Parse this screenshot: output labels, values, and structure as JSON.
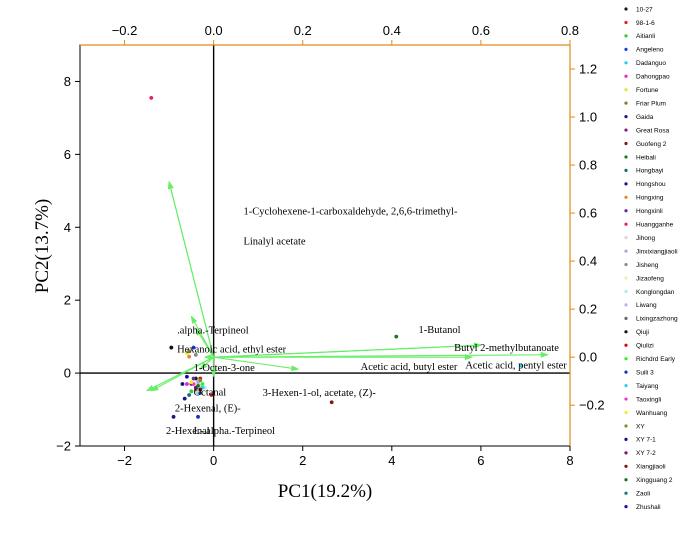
{
  "chart_data": {
    "type": "scatter",
    "xlabel": "PC1(19.2%)",
    "ylabel": "PC2(13.7%)",
    "xlim": [
      -3,
      8
    ],
    "ylim": [
      -2,
      9
    ],
    "xticks": [
      -2,
      0,
      2,
      4,
      6,
      8
    ],
    "yticks": [
      -2,
      0,
      2,
      4,
      6,
      8
    ],
    "loading_xlim": [
      -0.3,
      0.8
    ],
    "loading_ylim": [
      -0.37,
      1.3
    ],
    "top_ticks": [
      -0.2,
      0.0,
      0.2,
      0.4,
      0.6,
      0.8
    ],
    "right_ticks": [
      -0.2,
      0.0,
      0.2,
      0.4,
      0.6,
      0.8,
      1.0,
      1.2
    ],
    "top_tick_labels": [
      "−0.2",
      "0.0",
      "0.2",
      "0.4",
      "0.6",
      "0.8"
    ],
    "right_tick_labels": [
      "−0.2",
      "0.0",
      "0.2",
      "0.4",
      "0.6",
      "0.8",
      "1.0",
      "1.2"
    ],
    "xtick_labels": [
      "−2",
      "0",
      "2",
      "4",
      "6",
      "8"
    ],
    "ytick_labels": [
      "−2",
      "0",
      "2",
      "4",
      "6",
      "8"
    ],
    "colors": {
      "secondary_axes": "#e08a1e",
      "vectors": "#66ee66",
      "main_axes": "#000000"
    },
    "series": [
      {
        "name": "10-27",
        "color": "#1a1a1a",
        "x": -0.4,
        "y": -0.15
      },
      {
        "name": "98-1-6",
        "color": "#e02020",
        "x": -0.05,
        "y": -0.6
      },
      {
        "name": "Aitianli",
        "color": "#33cc33",
        "x": -0.5,
        "y": -0.5
      },
      {
        "name": "Angeleno",
        "color": "#1f3fd6",
        "x": -0.45,
        "y": 0.7
      },
      {
        "name": "Dadanguo",
        "color": "#22ccee",
        "x": 6.9,
        "y": 0.2
      },
      {
        "name": "Dahongpao",
        "color": "#e02ad0",
        "x": -0.6,
        "y": -0.3
      },
      {
        "name": "Fortune",
        "color": "#e6e62e",
        "x": -0.6,
        "y": 0.55
      },
      {
        "name": "Friar Plum",
        "color": "#8a7a2e",
        "x": -0.55,
        "y": 0.6
      },
      {
        "name": "Gaida",
        "color": "#1a1a7a",
        "x": -0.65,
        "y": -0.7
      },
      {
        "name": "Great Rosa",
        "color": "#7a1a7a",
        "x": -0.5,
        "y": -0.3
      },
      {
        "name": "Guofeng 2",
        "color": "#7a1a1a",
        "x": 2.65,
        "y": -0.8
      },
      {
        "name": "Heibali",
        "color": "#1a7a1a",
        "x": 4.1,
        "y": 1.0
      },
      {
        "name": "Hongbayi",
        "color": "#1a6a7a",
        "x": -0.55,
        "y": -0.6
      },
      {
        "name": "Hongshou",
        "color": "#1a1a7a",
        "x": -0.9,
        "y": -1.2
      },
      {
        "name": "Hongxing",
        "color": "#e08a1e",
        "x": -0.55,
        "y": 0.45
      },
      {
        "name": "Hongxinli",
        "color": "#6a2a9a",
        "x": -0.45,
        "y": -0.15
      },
      {
        "name": "Huangganhe",
        "color": "#e0206a",
        "x": -1.4,
        "y": 7.55
      },
      {
        "name": "Jihong",
        "color": "#d8d8d8",
        "x": -0.3,
        "y": -0.35
      },
      {
        "name": "Jinxixiangjiaoli",
        "color": "#aaaadd",
        "x": -0.35,
        "y": -0.25
      },
      {
        "name": "Jisheng",
        "color": "#888888",
        "x": -0.4,
        "y": 0.5
      },
      {
        "name": "Jizaofeng",
        "color": "#eeeeaa",
        "x": -0.3,
        "y": -0.5
      },
      {
        "name": "Konglongdan",
        "color": "#aaeeee",
        "x": -0.2,
        "y": -0.4
      },
      {
        "name": "Liwang",
        "color": "#aabbee",
        "x": -0.35,
        "y": -0.55
      },
      {
        "name": "Lixingzazhong",
        "color": "#666666",
        "x": -0.4,
        "y": -0.45
      },
      {
        "name": "Qiuji",
        "color": "#111111",
        "x": -0.95,
        "y": 0.7
      },
      {
        "name": "Qiulizi",
        "color": "#cc1111",
        "x": -0.3,
        "y": -0.15
      },
      {
        "name": "Richdrd Early",
        "color": "#33ee33",
        "x": -0.25,
        "y": -0.3
      },
      {
        "name": "Suili 3",
        "color": "#1133bb",
        "x": -0.35,
        "y": -1.2
      },
      {
        "name": "Taiyang",
        "color": "#33ccee",
        "x": -0.25,
        "y": -0.4
      },
      {
        "name": "Taoxingli",
        "color": "#ee33cc",
        "x": -0.45,
        "y": -0.3
      },
      {
        "name": "Wanhuang",
        "color": "#eeee33",
        "x": -0.5,
        "y": -0.25
      },
      {
        "name": "XY",
        "color": "#8a8a2e",
        "x": -0.3,
        "y": -0.2
      },
      {
        "name": "XY 7-1",
        "color": "#11117a",
        "x": -0.7,
        "y": -0.3
      },
      {
        "name": "XY 7-2",
        "color": "#7a117a",
        "x": -0.4,
        "y": -0.4
      },
      {
        "name": "Xiangjiaoli",
        "color": "#7a1111",
        "x": -0.3,
        "y": -0.45
      },
      {
        "name": "Xingguang 2",
        "color": "#117a11",
        "x": -0.35,
        "y": -0.35
      },
      {
        "name": "Zaoli",
        "color": "#117a7a",
        "x": -0.3,
        "y": -0.55
      },
      {
        "name": "Zhushali",
        "color": "#1111aa",
        "x": -0.6,
        "y": -0.1
      }
    ],
    "loadings": [
      {
        "label": "1-Cyclohexene-1-carboxaldehyde, 2,6,6-trimethyl-",
        "x": -0.1,
        "y": 0.73,
        "lx": 0.67,
        "ly": 4.35
      },
      {
        "label": "Linalyl acetate",
        "x": -0.1,
        "y": 0.73,
        "lx": 0.67,
        "ly": 3.53
      },
      {
        "label": ".alpha.-Terpineol",
        "x": -0.05,
        "y": 0.17,
        "lx": -0.82,
        "ly": 1.08
      },
      {
        "label": "Hexanoic acid, ethyl ester",
        "x": -0.04,
        "y": 0.12,
        "lx": -0.82,
        "ly": 0.56
      },
      {
        "label": "1-Octen-3-one",
        "x": -0.02,
        "y": 0.0,
        "lx": -0.45,
        "ly": 0.06
      },
      {
        "label": "1-Butanol",
        "x": 0.6,
        "y": 0.05,
        "lx": 4.6,
        "ly": 1.1
      },
      {
        "label": "Butyl 2-methylbutanoate",
        "x": 0.6,
        "y": 0.05,
        "lx": 5.4,
        "ly": 0.6
      },
      {
        "label": "Acetic acid, butyl ester",
        "x": 0.58,
        "y": 0.0,
        "lx": 3.3,
        "ly": 0.08
      },
      {
        "label": "Acetic acid, pentyl ester",
        "x": 0.75,
        "y": 0.01,
        "lx": 5.65,
        "ly": 0.12
      },
      {
        "label": "3-Hexen-1-ol, acetate, (Z)-",
        "x": 0.19,
        "y": -0.05,
        "lx": 1.1,
        "ly": -0.63
      },
      {
        "label": "Octanal",
        "x": -0.03,
        "y": -0.05,
        "lx": -0.45,
        "ly": -0.62
      },
      {
        "label": "2-Hexenal, (E)-",
        "x": -0.14,
        "y": -0.14,
        "lx": -0.87,
        "ly": -1.05
      },
      {
        "label": "2-Hexenal",
        "x": -0.15,
        "y": -0.14,
        "lx": -1.07,
        "ly": -1.67
      },
      {
        "label": "L-.alpha.-Terpineol",
        "x": 0.0,
        "y": -0.08,
        "lx": -0.45,
        "ly": -1.67
      }
    ]
  }
}
